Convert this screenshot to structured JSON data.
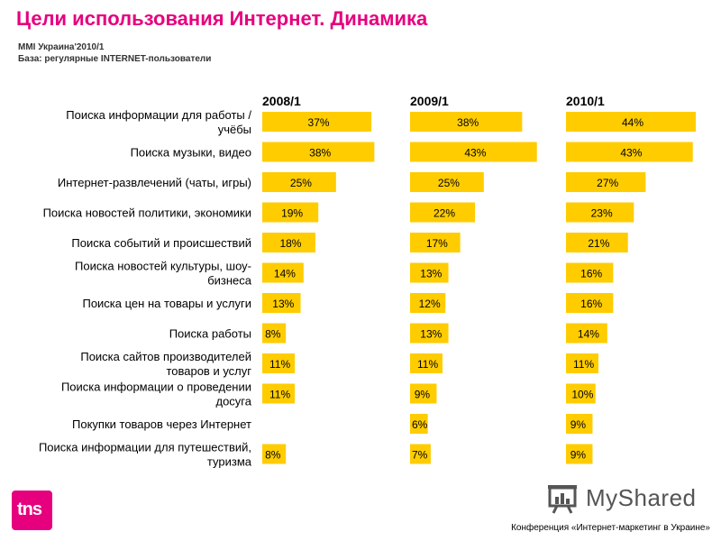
{
  "header": {
    "title": "Цели использования Интернет. Динамика",
    "source": "MMI Украина'2010/1",
    "base": "База: регулярные INTERNET-пользователи"
  },
  "footer": {
    "conference": "Конференция «Интернет-маркетинг в Украине»",
    "brand_logo": "tns",
    "watermark": "MyShared"
  },
  "colors": {
    "bar": "#ffcc00",
    "title": "#e6007e"
  },
  "chart_data": {
    "type": "bar",
    "orientation": "horizontal",
    "categories": [
      "Поиска информации для работы / учёбы",
      "Поиска музыки, видео",
      "Интернет-развлечений (чаты, игры)",
      "Поиска новостей политики, экономики",
      "Поиска событий и происшествий",
      "Поиска новостей культуры, шоу-бизнеса",
      "Поиска цен на товары и услуги",
      "Поиска работы",
      "Поиска сайтов производителей товаров и услуг",
      "Поиска информации о проведении досуга",
      "Покупки товаров через Интернет",
      "Поиска информации для путешествий, туризма"
    ],
    "category_lines": [
      [
        "Поиска информации для работы /",
        "учёбы"
      ],
      [
        "Поиска музыки, видео"
      ],
      [
        "Интернет-развлечений (чаты, игры)"
      ],
      [
        "Поиска новостей политики, экономики"
      ],
      [
        "Поиска событий и происшествий"
      ],
      [
        "Поиска новостей культуры, шоу-",
        "бизнеса"
      ],
      [
        "Поиска цен на товары и услуги"
      ],
      [
        "Поиска работы"
      ],
      [
        "Поиска сайтов производителей",
        "товаров и услуг"
      ],
      [
        "Поиска информации о проведении",
        "досуга"
      ],
      [
        "Покупки товаров через Интернет"
      ],
      [
        "Поиска информации для путешествий,",
        "туризма"
      ]
    ],
    "series": [
      {
        "name": "2008/1",
        "values": [
          37,
          38,
          25,
          19,
          18,
          14,
          13,
          8,
          11,
          11,
          null,
          8
        ],
        "labels": [
          "37%",
          "38%",
          "25%",
          "19%",
          "18%",
          "14%",
          "13%",
          "8%",
          "11%",
          "11%",
          "",
          "8%"
        ]
      },
      {
        "name": "2009/1",
        "values": [
          38,
          43,
          25,
          22,
          17,
          13,
          12,
          13,
          11,
          9,
          6,
          7
        ],
        "labels": [
          "38%",
          "43%",
          "25%",
          "22%",
          "17%",
          "13%",
          "12%",
          "13%",
          "11%",
          "9%",
          "6%",
          "7%"
        ]
      },
      {
        "name": "2010/1",
        "values": [
          44,
          43,
          27,
          23,
          21,
          16,
          16,
          14,
          11,
          10,
          9,
          9
        ],
        "labels": [
          "44%",
          "43%",
          "27%",
          "23%",
          "21%",
          "16%",
          "16%",
          "14%",
          "11%",
          "10%",
          "9%",
          "9%"
        ]
      }
    ],
    "value_unit": "%"
  }
}
